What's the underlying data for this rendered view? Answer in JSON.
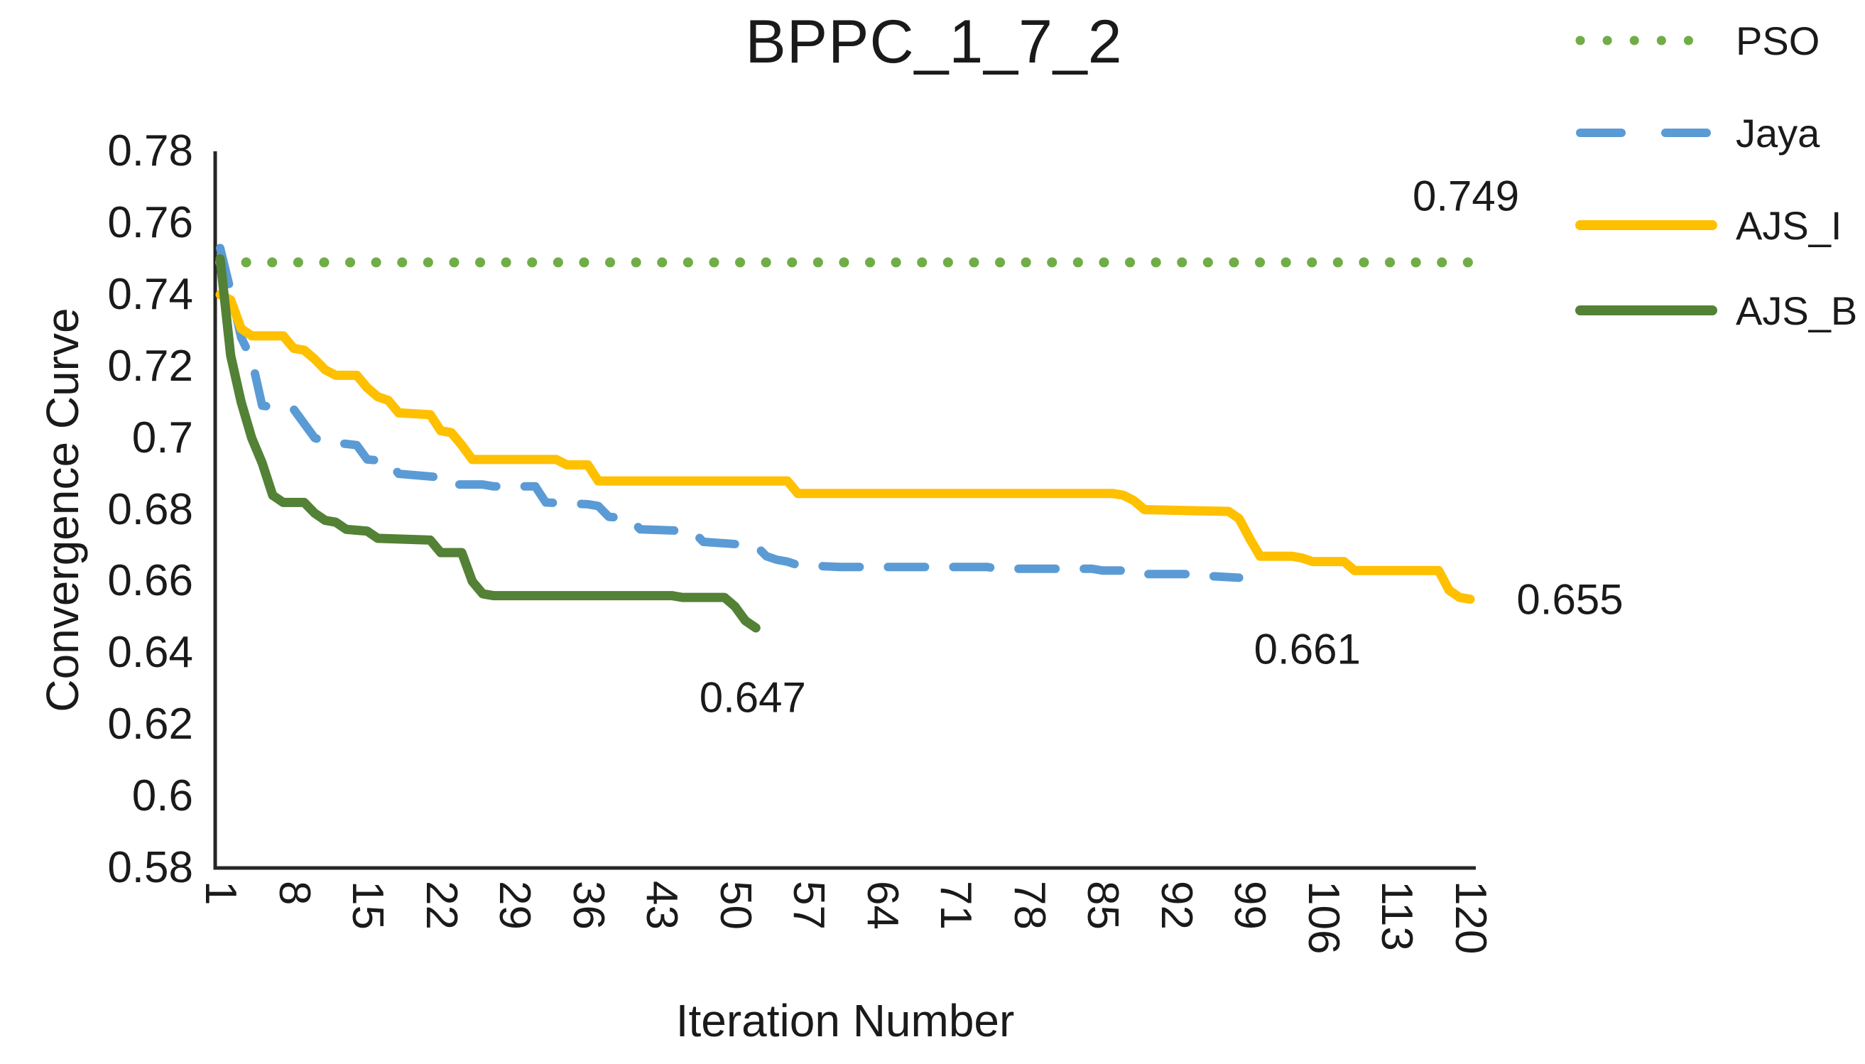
{
  "figure": {
    "background": "#ffffff",
    "text_color": "#1a1a1a",
    "axis_color": "#262626"
  },
  "chart_data": {
    "type": "line",
    "title": "BPPC_1_7_2",
    "xlabel": "Iteration Number",
    "ylabel": "Convergence Curve",
    "xlim": [
      1,
      120
    ],
    "ylim": [
      0.58,
      0.78
    ],
    "x_ticks": [
      1,
      8,
      15,
      22,
      29,
      36,
      43,
      50,
      57,
      64,
      71,
      78,
      85,
      92,
      99,
      106,
      113,
      120
    ],
    "y_ticks": [
      0.78,
      0.76,
      0.74,
      0.72,
      0.7,
      0.68,
      0.66,
      0.64,
      0.62,
      0.6,
      0.58
    ],
    "grid": false,
    "legend_position": "top-right",
    "series": [
      {
        "name": "PSO",
        "color": "#70AD47",
        "style": "dotted",
        "final_value": 0.749,
        "annotation": {
          "label": "0.749",
          "x": 119.6,
          "y": 0.7675
        },
        "points": [
          [
            1,
            0.749
          ],
          [
            120,
            0.749
          ]
        ]
      },
      {
        "name": "Jaya",
        "color": "#5B9BD5",
        "style": "dashed",
        "final_value": 0.661,
        "annotation": {
          "label": "0.661",
          "x": 104.5,
          "y": 0.641
        },
        "points": [
          [
            1,
            0.753
          ],
          [
            2,
            0.741
          ],
          [
            3,
            0.728
          ],
          [
            4,
            0.722
          ],
          [
            5,
            0.709
          ],
          [
            8,
            0.708
          ],
          [
            9,
            0.704
          ],
          [
            10,
            0.7
          ],
          [
            11,
            0.699
          ],
          [
            14,
            0.698
          ],
          [
            15,
            0.694
          ],
          [
            17,
            0.6935
          ],
          [
            18,
            0.69
          ],
          [
            22,
            0.689
          ],
          [
            23,
            0.687
          ],
          [
            26,
            0.687
          ],
          [
            27,
            0.6865
          ],
          [
            31,
            0.6865
          ],
          [
            32,
            0.682
          ],
          [
            36,
            0.6815
          ],
          [
            37,
            0.681
          ],
          [
            38,
            0.678
          ],
          [
            40,
            0.6775
          ],
          [
            41,
            0.6745
          ],
          [
            46,
            0.674
          ],
          [
            47,
            0.671
          ],
          [
            52,
            0.67
          ],
          [
            53,
            0.667
          ],
          [
            54,
            0.666
          ],
          [
            55,
            0.6655
          ],
          [
            56,
            0.6645
          ],
          [
            60,
            0.664
          ],
          [
            74,
            0.664
          ],
          [
            75,
            0.6635
          ],
          [
            84,
            0.6635
          ],
          [
            85,
            0.663
          ],
          [
            88,
            0.663
          ],
          [
            89,
            0.662
          ],
          [
            94,
            0.662
          ],
          [
            95,
            0.6615
          ],
          [
            98,
            0.661
          ]
        ]
      },
      {
        "name": "AJS_I",
        "color": "#FFC000",
        "style": "solid",
        "final_value": 0.655,
        "annotation": {
          "label": "0.655",
          "x": 129.5,
          "y": 0.655
        },
        "points": [
          [
            1,
            0.74
          ],
          [
            2,
            0.7385
          ],
          [
            3,
            0.7305
          ],
          [
            4,
            0.7285
          ],
          [
            7,
            0.7285
          ],
          [
            8,
            0.725
          ],
          [
            9,
            0.7245
          ],
          [
            10,
            0.722
          ],
          [
            11,
            0.719
          ],
          [
            12,
            0.7175
          ],
          [
            14,
            0.7175
          ],
          [
            15,
            0.714
          ],
          [
            16,
            0.7115
          ],
          [
            17,
            0.7105
          ],
          [
            18,
            0.707
          ],
          [
            21,
            0.7065
          ],
          [
            22,
            0.702
          ],
          [
            23,
            0.7015
          ],
          [
            24,
            0.698
          ],
          [
            25,
            0.694
          ],
          [
            33,
            0.694
          ],
          [
            34,
            0.6925
          ],
          [
            36,
            0.6925
          ],
          [
            37,
            0.688
          ],
          [
            55,
            0.688
          ],
          [
            56,
            0.6845
          ],
          [
            86,
            0.6845
          ],
          [
            87,
            0.684
          ],
          [
            88,
            0.6825
          ],
          [
            89,
            0.68
          ],
          [
            97,
            0.6795
          ],
          [
            98,
            0.6775
          ],
          [
            99,
            0.672
          ],
          [
            100,
            0.667
          ],
          [
            103,
            0.667
          ],
          [
            104,
            0.6665
          ],
          [
            105,
            0.6655
          ],
          [
            108,
            0.6655
          ],
          [
            109,
            0.663
          ],
          [
            117,
            0.663
          ],
          [
            118,
            0.6575
          ],
          [
            119,
            0.6555
          ],
          [
            120,
            0.655
          ]
        ]
      },
      {
        "name": "AJS_B",
        "color": "#538135",
        "style": "solid",
        "final_value": 0.647,
        "annotation": {
          "label": "0.647",
          "x": 51.7,
          "y": 0.6275
        },
        "points": [
          [
            1,
            0.75
          ],
          [
            2,
            0.723
          ],
          [
            3,
            0.71
          ],
          [
            4,
            0.7
          ],
          [
            5,
            0.693
          ],
          [
            6,
            0.684
          ],
          [
            7,
            0.682
          ],
          [
            9,
            0.682
          ],
          [
            10,
            0.679
          ],
          [
            11,
            0.677
          ],
          [
            12,
            0.6765
          ],
          [
            13,
            0.6745
          ],
          [
            15,
            0.674
          ],
          [
            16,
            0.672
          ],
          [
            21,
            0.6715
          ],
          [
            22,
            0.668
          ],
          [
            24,
            0.668
          ],
          [
            25,
            0.66
          ],
          [
            26,
            0.6565
          ],
          [
            27,
            0.656
          ],
          [
            44,
            0.656
          ],
          [
            45,
            0.6555
          ],
          [
            49,
            0.6555
          ],
          [
            50,
            0.653
          ],
          [
            51,
            0.649
          ],
          [
            52,
            0.647
          ]
        ]
      }
    ]
  }
}
